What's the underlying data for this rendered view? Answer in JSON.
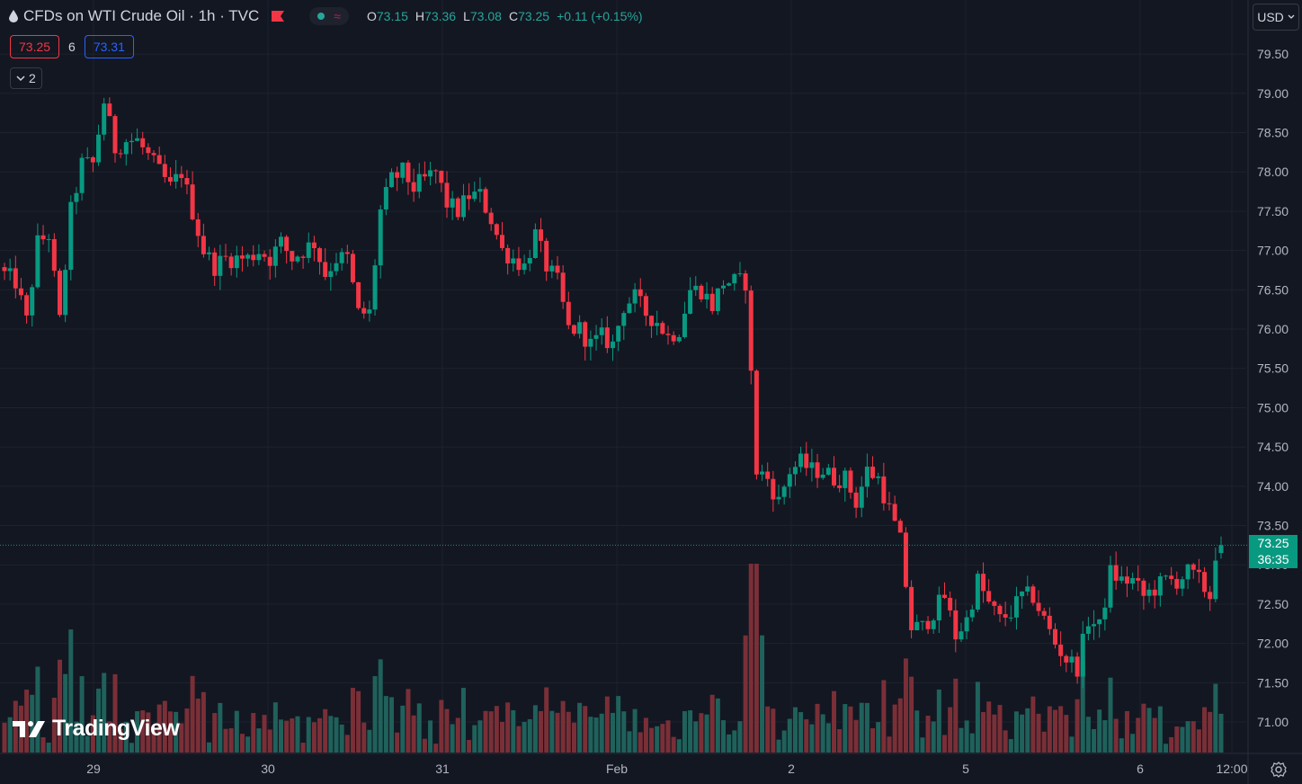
{
  "header": {
    "title": "CFDs on WTI Crude Oil · 1h · TVC",
    "ohlc": [
      {
        "k": "O",
        "v": "73.15"
      },
      {
        "k": "H",
        "v": "73.36"
      },
      {
        "k": "L",
        "v": "73.08"
      },
      {
        "k": "C",
        "v": "73.25"
      }
    ],
    "change": "+0.11 (+0.15%)",
    "status_symbol": "≈"
  },
  "quote": {
    "bid": "73.25",
    "spread": "6",
    "ask": "73.31"
  },
  "indicators_toggle": {
    "count": "2"
  },
  "currency": "USD",
  "last_price_label": {
    "price": "73.25",
    "countdown": "36:35"
  },
  "logo_text": "TradingView",
  "colors": {
    "up": "#089981",
    "down": "#f23645",
    "background": "#131722",
    "grid": "#1e222d",
    "volume_up": "#1f615b",
    "volume_down": "#7a2f37"
  },
  "chart_data": {
    "type": "candlestick",
    "y_ticks": [
      "79.50",
      "79.00",
      "78.50",
      "78.00",
      "77.50",
      "77.00",
      "76.50",
      "76.00",
      "75.50",
      "75.00",
      "74.50",
      "74.00",
      "73.50",
      "73.00",
      "72.50",
      "72.00",
      "71.50",
      "71.00"
    ],
    "ylim": [
      70.6,
      79.8
    ],
    "x_ticks": [
      "29",
      "30",
      "31",
      "Feb",
      "2",
      "5",
      "6",
      "12:00"
    ],
    "last_price": 73.25,
    "grid": true,
    "key_points": [
      [
        0,
        76.7
      ],
      [
        2,
        76.6
      ],
      [
        4,
        76.1
      ],
      [
        6,
        77.1
      ],
      [
        8,
        77.2
      ],
      [
        10,
        76.1
      ],
      [
        12,
        77.5
      ],
      [
        14,
        78.1
      ],
      [
        16,
        78.1
      ],
      [
        18,
        78.9
      ],
      [
        20,
        78.3
      ],
      [
        22,
        78.4
      ],
      [
        24,
        78.4
      ],
      [
        26,
        78.2
      ],
      [
        28,
        78.0
      ],
      [
        30,
        77.8
      ],
      [
        32,
        78.0
      ],
      [
        34,
        77.5
      ],
      [
        36,
        77.0
      ],
      [
        38,
        76.8
      ],
      [
        40,
        76.9
      ],
      [
        42,
        76.9
      ],
      [
        44,
        76.9
      ],
      [
        46,
        77.0
      ],
      [
        48,
        76.9
      ],
      [
        50,
        77.1
      ],
      [
        52,
        76.9
      ],
      [
        54,
        77.0
      ],
      [
        56,
        77.1
      ],
      [
        58,
        76.7
      ],
      [
        60,
        76.9
      ],
      [
        62,
        76.9
      ],
      [
        64,
        76.2
      ],
      [
        66,
        76.2
      ],
      [
        68,
        77.5
      ],
      [
        70,
        77.9
      ],
      [
        72,
        78.0
      ],
      [
        74,
        77.8
      ],
      [
        76,
        77.9
      ],
      [
        78,
        78.0
      ],
      [
        80,
        77.6
      ],
      [
        82,
        77.5
      ],
      [
        84,
        77.7
      ],
      [
        86,
        77.7
      ],
      [
        88,
        77.4
      ],
      [
        90,
        77.0
      ],
      [
        92,
        76.9
      ],
      [
        94,
        76.8
      ],
      [
        96,
        77.2
      ],
      [
        98,
        76.8
      ],
      [
        100,
        76.6
      ],
      [
        102,
        76.0
      ],
      [
        104,
        76.0
      ],
      [
        106,
        75.8
      ],
      [
        108,
        75.9
      ],
      [
        110,
        75.8
      ],
      [
        112,
        76.3
      ],
      [
        114,
        76.4
      ],
      [
        116,
        76.2
      ],
      [
        118,
        76.1
      ],
      [
        120,
        75.9
      ],
      [
        122,
        76.0
      ],
      [
        124,
        76.5
      ],
      [
        126,
        76.5
      ],
      [
        128,
        76.3
      ],
      [
        130,
        76.6
      ],
      [
        132,
        76.6
      ],
      [
        134,
        76.6
      ],
      [
        136,
        74.2
      ],
      [
        138,
        74.1
      ],
      [
        140,
        73.8
      ],
      [
        142,
        74.2
      ],
      [
        144,
        74.3
      ],
      [
        146,
        74.2
      ],
      [
        148,
        74.2
      ],
      [
        150,
        74.1
      ],
      [
        152,
        74.1
      ],
      [
        154,
        73.8
      ],
      [
        156,
        74.2
      ],
      [
        158,
        74.1
      ],
      [
        160,
        73.7
      ],
      [
        162,
        73.3
      ],
      [
        164,
        72.2
      ],
      [
        166,
        72.2
      ],
      [
        168,
        72.4
      ],
      [
        170,
        72.6
      ],
      [
        172,
        72.1
      ],
      [
        174,
        72.3
      ],
      [
        176,
        72.8
      ],
      [
        178,
        72.5
      ],
      [
        180,
        72.3
      ],
      [
        182,
        72.4
      ],
      [
        184,
        72.6
      ],
      [
        186,
        72.6
      ],
      [
        188,
        72.3
      ],
      [
        190,
        72.0
      ],
      [
        192,
        71.8
      ],
      [
        194,
        71.7
      ],
      [
        196,
        72.3
      ],
      [
        198,
        72.2
      ],
      [
        200,
        72.9
      ],
      [
        202,
        72.8
      ],
      [
        204,
        72.8
      ],
      [
        206,
        72.6
      ],
      [
        208,
        72.7
      ],
      [
        210,
        72.8
      ],
      [
        212,
        72.8
      ],
      [
        214,
        72.9
      ],
      [
        216,
        72.8
      ],
      [
        218,
        72.6
      ],
      [
        219,
        73.15
      ],
      [
        220,
        73.25
      ]
    ],
    "bar_count": 221
  }
}
